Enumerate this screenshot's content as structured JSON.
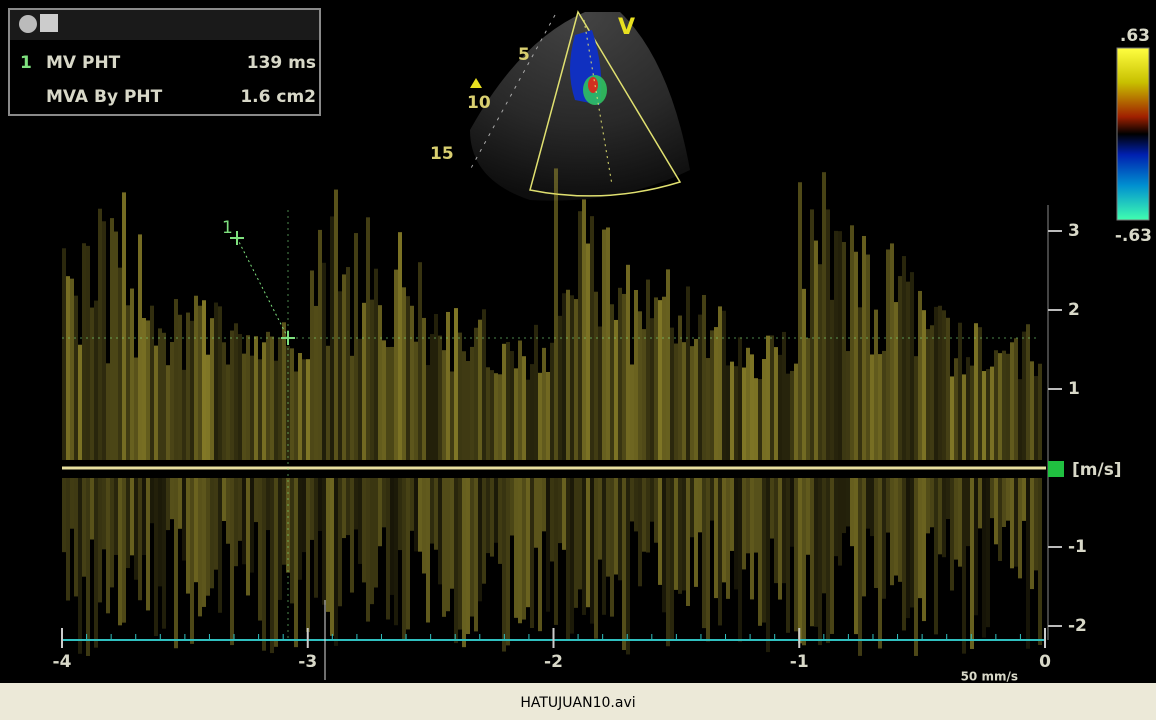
{
  "measurements": [
    {
      "index": "1",
      "name": "MV PHT",
      "value": "139 ms"
    },
    {
      "name": "MVA By PHT",
      "value": "1.6 cm2"
    }
  ],
  "sector": {
    "mode": "V",
    "depth_marks": [
      "5",
      "10",
      "15"
    ]
  },
  "color_scale": {
    "max": ".63",
    "min": "-.63"
  },
  "spectrum": {
    "velocity_ticks": [
      3,
      2,
      1,
      -1,
      -2
    ],
    "velocity_unit": "[m/s]",
    "time_ticks": [
      -4,
      -3,
      -2,
      -1,
      0
    ],
    "sweep_speed": "50 mm/s",
    "caliper_label": "1"
  },
  "footer": {
    "filename": "HATUJUAN10.avi"
  }
}
